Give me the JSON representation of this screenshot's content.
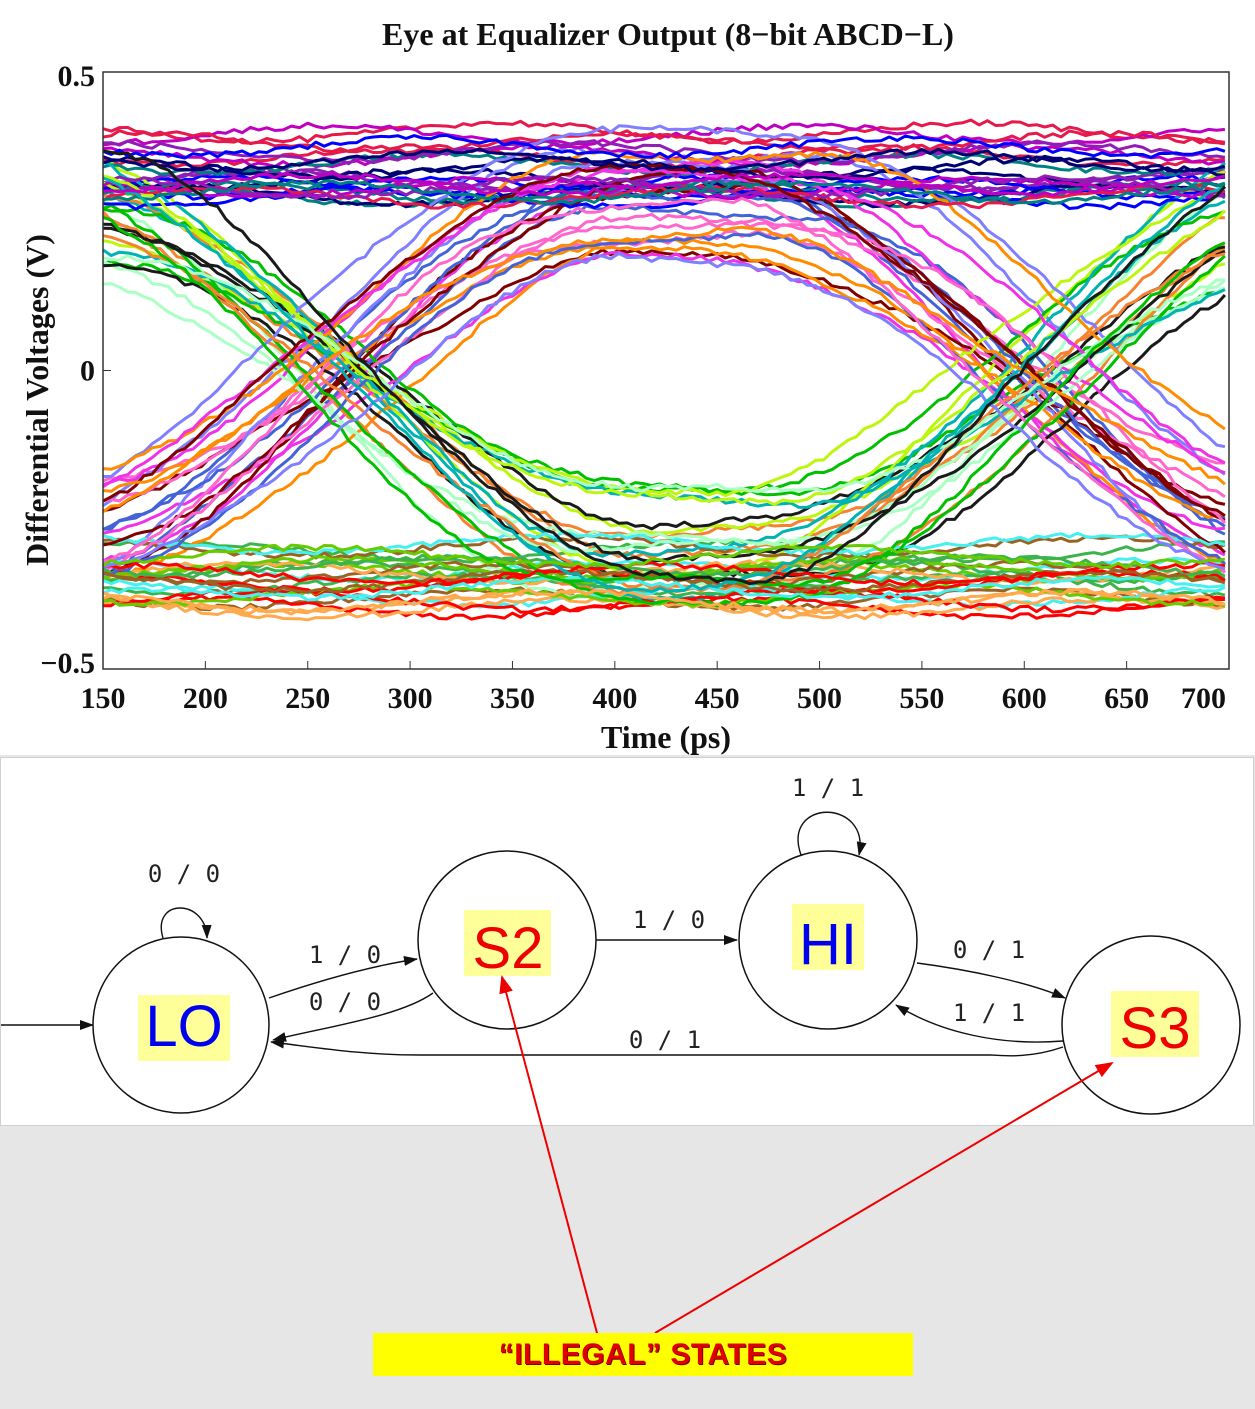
{
  "chart_data": {
    "type": "line",
    "title": "Eye at Equalizer Output (8−bit ABCD−L)",
    "xlabel": "Time (ps)",
    "ylabel": "Differential Voltages (V)",
    "xlim": [
      150,
      700
    ],
    "ylim": [
      -0.5,
      0.5
    ],
    "x_ticks": [
      "150",
      "200",
      "250",
      "300",
      "350",
      "400",
      "450",
      "500",
      "550",
      "600",
      "650",
      "700"
    ],
    "y_ticks": [
      "0.5",
      "0",
      "−0.5"
    ],
    "grid": false,
    "legend": "none",
    "series_colors": [
      "#e6194b",
      "#3cb44b",
      "#4363d8",
      "#f58231",
      "#911eb4",
      "#46f0f0",
      "#f032e6",
      "#bcf60c",
      "#008080",
      "#9a6324",
      "#800000",
      "#aaffc3",
      "#000075",
      "#ffa94d",
      "#ff66cc",
      "#00c000",
      "#0000ff",
      "#ff0000",
      "#7f7fff",
      "#00b3b3",
      "#c000c0",
      "#66cc00",
      "#ff8c00",
      "#1a1a1a"
    ]
  },
  "fsm": {
    "states": [
      {
        "id": "LO",
        "label": "LO",
        "color": "#0000ee",
        "illegal": false
      },
      {
        "id": "S2",
        "label": "S2",
        "color": "#ee0000",
        "illegal": true
      },
      {
        "id": "HI",
        "label": "HI",
        "color": "#0000ee",
        "illegal": false
      },
      {
        "id": "S3",
        "label": "S3",
        "color": "#ee0000",
        "illegal": true
      }
    ],
    "transitions": [
      {
        "from": "LO",
        "to": "LO",
        "label": "0 / 0"
      },
      {
        "from": "LO",
        "to": "S2",
        "label": "1 / 0"
      },
      {
        "from": "S2",
        "to": "LO",
        "label": "0 / 0"
      },
      {
        "from": "S2",
        "to": "HI",
        "label": "1 / 0"
      },
      {
        "from": "HI",
        "to": "HI",
        "label": "1 / 1"
      },
      {
        "from": "HI",
        "to": "S3",
        "label": "0 / 1"
      },
      {
        "from": "S3",
        "to": "HI",
        "label": "1 / 1"
      },
      {
        "from": "S3",
        "to": "LO",
        "label": "0 / 1"
      }
    ],
    "label_highlight": "#ffff99"
  },
  "callout": {
    "text": "“ILLEGAL” STATES",
    "box_color": "#ffff00",
    "text_color": "#e00000",
    "arrow_color": "#ee0000"
  }
}
